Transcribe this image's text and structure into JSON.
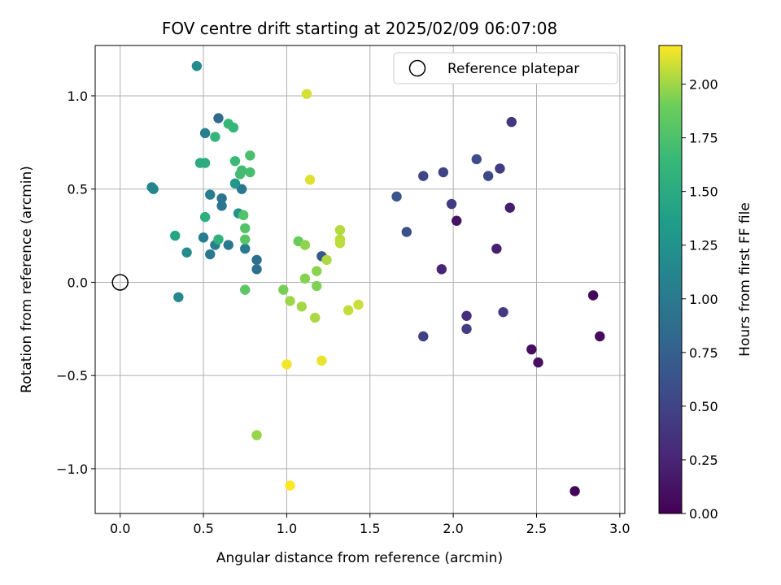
{
  "chart_data": {
    "type": "scatter",
    "title": "FOV centre drift starting at 2025/02/09 06:07:08",
    "xlabel": "Angular distance from reference (arcmin)",
    "ylabel": "Rotation from reference (arcmin)",
    "xlim": [
      -0.15,
      3.03
    ],
    "ylim": [
      -1.24,
      1.27
    ],
    "xticks": [
      0.0,
      0.5,
      1.0,
      1.5,
      2.0,
      2.5,
      3.0
    ],
    "xtick_labels": [
      "0.0",
      "0.5",
      "1.0",
      "1.5",
      "2.0",
      "2.5",
      "3.0"
    ],
    "yticks": [
      -1.0,
      -0.5,
      0.0,
      0.5,
      1.0
    ],
    "ytick_labels": [
      "−1.0",
      "−0.5",
      "0.0",
      "0.5",
      "1.0"
    ],
    "grid": true,
    "colormap": "viridis",
    "colorbar": {
      "label": "Hours from first FF file",
      "min": 0.0,
      "max": 2.18,
      "ticks": [
        0.0,
        0.25,
        0.5,
        0.75,
        1.0,
        1.25,
        1.5,
        1.75,
        2.0
      ],
      "tick_labels": [
        "0.00",
        "0.25",
        "0.50",
        "0.75",
        "1.00",
        "1.25",
        "1.50",
        "1.75",
        "2.00"
      ]
    },
    "legend": {
      "position": "top-right",
      "entries": [
        {
          "label": "Reference platepar",
          "marker": "open-circle",
          "x": 0.0,
          "y": 0.0
        }
      ]
    },
    "points": [
      {
        "x": 2.73,
        "y": -1.12,
        "c": 0.03
      },
      {
        "x": 2.84,
        "y": -0.07,
        "c": 0.05
      },
      {
        "x": 2.88,
        "y": -0.29,
        "c": 0.07
      },
      {
        "x": 2.47,
        "y": -0.36,
        "c": 0.09
      },
      {
        "x": 2.51,
        "y": -0.43,
        "c": 0.11
      },
      {
        "x": 2.02,
        "y": 0.33,
        "c": 0.13
      },
      {
        "x": 2.34,
        "y": 0.4,
        "c": 0.2
      },
      {
        "x": 2.26,
        "y": 0.18,
        "c": 0.22
      },
      {
        "x": 1.93,
        "y": 0.07,
        "c": 0.25
      },
      {
        "x": 2.08,
        "y": -0.18,
        "c": 0.33
      },
      {
        "x": 2.35,
        "y": 0.86,
        "c": 0.38
      },
      {
        "x": 2.3,
        "y": -0.16,
        "c": 0.42
      },
      {
        "x": 1.99,
        "y": 0.42,
        "c": 0.43
      },
      {
        "x": 2.28,
        "y": 0.61,
        "c": 0.44
      },
      {
        "x": 2.08,
        "y": -0.25,
        "c": 0.46
      },
      {
        "x": 1.82,
        "y": -0.29,
        "c": 0.48
      },
      {
        "x": 1.94,
        "y": 0.59,
        "c": 0.5
      },
      {
        "x": 1.82,
        "y": 0.57,
        "c": 0.52
      },
      {
        "x": 2.21,
        "y": 0.57,
        "c": 0.54
      },
      {
        "x": 2.14,
        "y": 0.66,
        "c": 0.58
      },
      {
        "x": 1.72,
        "y": 0.27,
        "c": 0.6
      },
      {
        "x": 1.66,
        "y": 0.46,
        "c": 0.65
      },
      {
        "x": 1.21,
        "y": 0.14,
        "c": 0.68
      },
      {
        "x": 0.59,
        "y": 0.88,
        "c": 0.85
      },
      {
        "x": 0.82,
        "y": 0.12,
        "c": 0.88
      },
      {
        "x": 0.82,
        "y": 0.07,
        "c": 0.9
      },
      {
        "x": 0.61,
        "y": 0.45,
        "c": 0.93
      },
      {
        "x": 0.61,
        "y": 0.41,
        "c": 0.95
      },
      {
        "x": 0.73,
        "y": 0.5,
        "c": 0.97
      },
      {
        "x": 0.54,
        "y": 0.15,
        "c": 0.99
      },
      {
        "x": 0.65,
        "y": 0.2,
        "c": 1.0
      },
      {
        "x": 0.5,
        "y": 0.24,
        "c": 1.02
      },
      {
        "x": 0.75,
        "y": 0.18,
        "c": 1.03
      },
      {
        "x": 0.51,
        "y": 0.8,
        "c": 1.04
      },
      {
        "x": 0.54,
        "y": 0.47,
        "c": 1.05
      },
      {
        "x": 0.57,
        "y": 0.2,
        "c": 1.06
      },
      {
        "x": 0.19,
        "y": 0.51,
        "c": 1.1
      },
      {
        "x": 0.2,
        "y": 0.5,
        "c": 1.12
      },
      {
        "x": 0.35,
        "y": -0.08,
        "c": 1.15
      },
      {
        "x": 0.4,
        "y": 0.16,
        "c": 1.18
      },
      {
        "x": 0.46,
        "y": 1.16,
        "c": 1.2
      },
      {
        "x": 0.71,
        "y": 0.37,
        "c": 1.25
      },
      {
        "x": 0.69,
        "y": 0.53,
        "c": 1.3
      },
      {
        "x": 0.33,
        "y": 0.25,
        "c": 1.45
      },
      {
        "x": 0.48,
        "y": 0.64,
        "c": 1.5
      },
      {
        "x": 0.51,
        "y": 0.64,
        "c": 1.52
      },
      {
        "x": 0.51,
        "y": 0.35,
        "c": 1.55
      },
      {
        "x": 0.59,
        "y": 0.23,
        "c": 1.58
      },
      {
        "x": 0.57,
        "y": 0.78,
        "c": 1.6
      },
      {
        "x": 0.68,
        "y": 0.83,
        "c": 1.62
      },
      {
        "x": 0.65,
        "y": 0.85,
        "c": 1.64
      },
      {
        "x": 0.69,
        "y": 0.65,
        "c": 1.66
      },
      {
        "x": 0.73,
        "y": 0.6,
        "c": 1.68
      },
      {
        "x": 0.72,
        "y": 0.58,
        "c": 1.7
      },
      {
        "x": 0.78,
        "y": 0.59,
        "c": 1.72
      },
      {
        "x": 0.78,
        "y": 0.68,
        "c": 1.74
      },
      {
        "x": 0.74,
        "y": 0.36,
        "c": 1.76
      },
      {
        "x": 0.75,
        "y": 0.29,
        "c": 1.78
      },
      {
        "x": 0.75,
        "y": 0.23,
        "c": 1.8
      },
      {
        "x": 0.75,
        "y": -0.04,
        "c": 1.82
      },
      {
        "x": 1.07,
        "y": 0.22,
        "c": 1.88
      },
      {
        "x": 0.98,
        "y": -0.04,
        "c": 1.92
      },
      {
        "x": 1.18,
        "y": -0.02,
        "c": 1.94
      },
      {
        "x": 1.11,
        "y": 0.02,
        "c": 1.95
      },
      {
        "x": 1.18,
        "y": 0.06,
        "c": 1.96
      },
      {
        "x": 1.11,
        "y": 0.2,
        "c": 1.97
      },
      {
        "x": 0.82,
        "y": -0.82,
        "c": 1.98
      },
      {
        "x": 1.02,
        "y": -0.1,
        "c": 2.0
      },
      {
        "x": 1.09,
        "y": -0.13,
        "c": 2.01
      },
      {
        "x": 1.17,
        "y": -0.19,
        "c": 2.02
      },
      {
        "x": 1.24,
        "y": 0.12,
        "c": 2.03
      },
      {
        "x": 1.32,
        "y": 0.28,
        "c": 2.04
      },
      {
        "x": 1.32,
        "y": 0.23,
        "c": 2.05
      },
      {
        "x": 1.32,
        "y": 0.21,
        "c": 2.06
      },
      {
        "x": 1.37,
        "y": -0.15,
        "c": 2.07
      },
      {
        "x": 1.43,
        "y": -0.12,
        "c": 2.08
      },
      {
        "x": 1.12,
        "y": 1.01,
        "c": 2.1
      },
      {
        "x": 1.14,
        "y": 0.55,
        "c": 2.12
      },
      {
        "x": 1.21,
        "y": -0.42,
        "c": 2.14
      },
      {
        "x": 1.0,
        "y": -0.44,
        "c": 2.16
      },
      {
        "x": 1.02,
        "y": -1.09,
        "c": 2.18
      }
    ]
  }
}
